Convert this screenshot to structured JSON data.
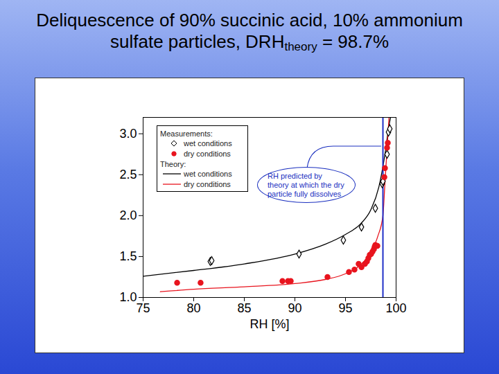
{
  "chart_data": {
    "type": "scatter",
    "title": "Deliquescence of 90% succinic acid, 10% ammonium sulfate particles, DRHtheory = 98.7%",
    "title_subscript": "theory",
    "x_label": "RH [%]",
    "xlim": [
      75,
      100
    ],
    "xticks": [
      75,
      80,
      85,
      90,
      95,
      100
    ],
    "ylim": [
      1.0,
      3.2
    ],
    "yticks": [
      {
        "value": 1.0,
        "label": "1.0"
      },
      {
        "value": 1.5,
        "label": "1.5"
      },
      {
        "value": 2.0,
        "label": "2.0"
      },
      {
        "value": 2.5,
        "label": "2.5"
      },
      {
        "value": 3.0,
        "label": "3.0"
      }
    ],
    "legend": "upper left",
    "series": [
      {
        "name": "wet conditions",
        "group": "Measurements:",
        "type": "scatter",
        "marker": "diamond_open",
        "color": "#000000",
        "x": [
          81.64,
          81.78,
          90.41,
          94.79,
          96.58,
          97.95,
          98.63,
          98.7,
          99.11,
          99.25,
          99.38
        ],
        "values": [
          1.44,
          1.45,
          1.53,
          1.7,
          1.86,
          2.09,
          2.39,
          2.42,
          2.75,
          3.02,
          3.06
        ]
      },
      {
        "name": "dry conditions",
        "group": "Measurements:",
        "type": "scatter",
        "marker": "circle",
        "color": "#e8141e",
        "x": [
          78.36,
          80.68,
          88.77,
          89.32,
          89.59,
          93.22,
          95.34,
          95.89,
          96.3,
          96.58,
          96.92,
          97.12,
          97.26,
          97.4,
          97.53,
          97.67,
          97.81,
          97.88,
          97.95,
          98.15,
          98.84,
          98.9,
          99.11,
          99.18
        ],
        "values": [
          1.18,
          1.18,
          1.2,
          1.2,
          1.2,
          1.25,
          1.31,
          1.34,
          1.41,
          1.37,
          1.41,
          1.44,
          1.48,
          1.52,
          1.53,
          1.56,
          1.59,
          1.62,
          1.64,
          1.63,
          2.47,
          2.58,
          2.83,
          2.89
        ]
      },
      {
        "name": "wet conditions",
        "group": "Theory:",
        "type": "line",
        "line_style": "solid",
        "color": "#000000",
        "x": [
          75,
          80,
          85,
          90,
          93,
          95,
          96.5,
          97.5,
          98.3,
          98.9,
          99.3,
          99.45
        ],
        "values": [
          1.26,
          1.33,
          1.41,
          1.53,
          1.65,
          1.77,
          1.9,
          2.07,
          2.35,
          2.75,
          3.1,
          3.2
        ]
      },
      {
        "name": "dry conditions",
        "group": "Theory:",
        "type": "line",
        "line_style": "solid",
        "color": "#e8141e",
        "x": [
          76.7,
          80,
          85,
          90,
          93,
          95,
          96.5,
          97.5,
          98.2,
          98.7,
          98.9,
          99.1,
          99.3
        ],
        "values": [
          1.07,
          1.1,
          1.13,
          1.17,
          1.22,
          1.29,
          1.4,
          1.55,
          1.75,
          2.0,
          2.4,
          2.8,
          3.2
        ]
      }
    ],
    "vline": {
      "x": 98.7,
      "color": "#1f2fc8"
    },
    "annotation": "RH predicted by theory at which the dry particle fully dissolves",
    "annotation_color": "#1a2fbf"
  }
}
